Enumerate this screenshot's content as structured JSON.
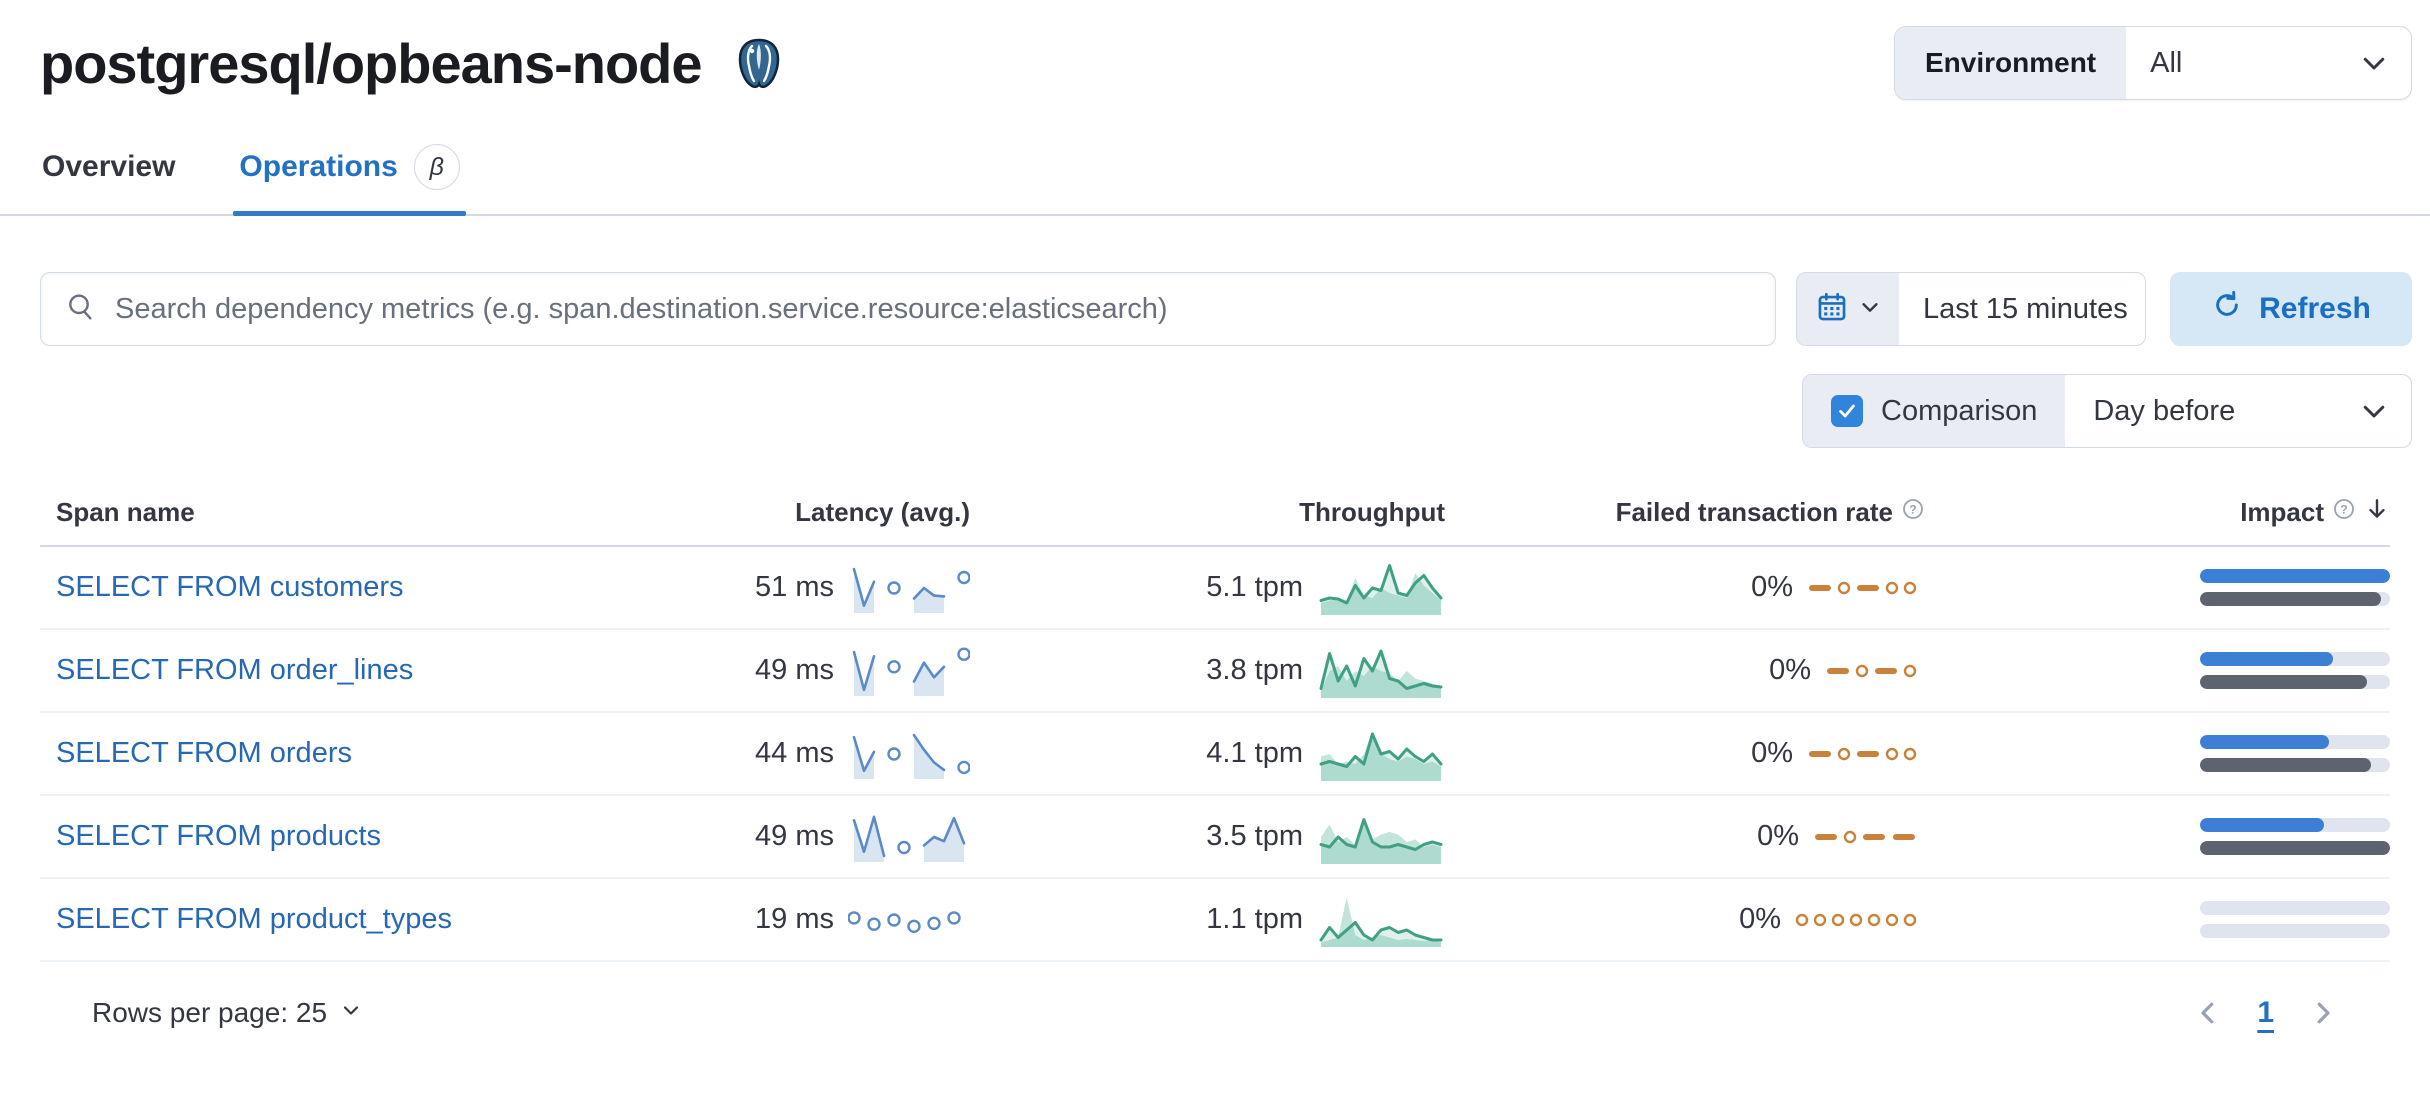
{
  "page": {
    "title": "postgresql/opbeans-node"
  },
  "environment": {
    "label": "Environment",
    "value": "All"
  },
  "tabs": [
    {
      "label": "Overview",
      "active": false
    },
    {
      "label": "Operations",
      "active": true,
      "beta": "β"
    }
  ],
  "search": {
    "placeholder": "Search dependency metrics (e.g. span.destination.service.resource:elasticsearch)"
  },
  "time": {
    "range": "Last 15 minutes",
    "refresh_label": "Refresh"
  },
  "comparison": {
    "label": "Comparison",
    "value": "Day before",
    "checked": true
  },
  "table": {
    "columns": [
      "Span name",
      "Latency (avg.)",
      "Throughput",
      "Failed transaction rate",
      "Impact"
    ],
    "rows": [
      {
        "span_name": "SELECT FROM customers",
        "latency": "51 ms",
        "latency_spark": [
          0.95,
          0.08,
          0.65,
          null,
          0.5,
          null,
          0.25,
          0.5,
          0.32,
          0.3,
          null,
          0.75
        ],
        "throughput": "5.1 tpm",
        "throughput_spark": [
          0.25,
          0.3,
          0.28,
          0.2,
          0.55,
          0.3,
          0.5,
          0.45,
          0.95,
          0.4,
          0.35,
          0.6,
          0.75,
          0.5,
          0.3
        ],
        "throughput_compare": [
          0.2,
          0.25,
          0.3,
          0.25,
          0.7,
          0.35,
          0.3,
          0.5,
          0.4,
          0.35,
          0.3,
          0.8,
          0.55,
          0.4,
          0.25
        ],
        "failed_rate": "0%",
        "failed_spark": [
          "dash",
          "dot",
          "dash",
          "dot",
          "dot"
        ],
        "impact_pct": 100,
        "impact_prev_pct": 95
      },
      {
        "span_name": "SELECT FROM order_lines",
        "latency": "49 ms",
        "latency_spark": [
          0.95,
          0.05,
          0.85,
          null,
          0.6,
          null,
          0.25,
          0.7,
          0.35,
          0.6,
          null,
          0.9
        ],
        "throughput": "3.8 tpm",
        "throughput_spark": [
          0.15,
          0.85,
          0.3,
          0.6,
          0.2,
          0.75,
          0.5,
          0.9,
          0.35,
          0.3,
          0.15,
          0.2,
          0.25,
          0.2,
          0.18
        ],
        "throughput_compare": [
          0.1,
          0.5,
          0.6,
          0.3,
          0.5,
          0.4,
          0.6,
          0.5,
          0.45,
          0.3,
          0.5,
          0.35,
          0.3,
          0.25,
          0.2
        ],
        "failed_rate": "0%",
        "failed_spark": [
          "dash",
          "dot",
          "dash",
          "dot"
        ],
        "impact_pct": 70,
        "impact_prev_pct": 88
      },
      {
        "span_name": "SELECT FROM orders",
        "latency": "44 ms",
        "latency_spark": [
          0.9,
          0.1,
          0.55,
          null,
          0.5,
          null,
          0.95,
          0.6,
          0.3,
          0.12,
          null,
          0.18
        ],
        "throughput": "4.1 tpm",
        "throughput_spark": [
          0.3,
          0.35,
          0.3,
          0.25,
          0.45,
          0.3,
          0.9,
          0.5,
          0.55,
          0.4,
          0.6,
          0.45,
          0.35,
          0.5,
          0.3
        ],
        "throughput_compare": [
          0.45,
          0.5,
          0.3,
          0.35,
          0.3,
          0.5,
          0.95,
          0.5,
          0.4,
          0.35,
          0.45,
          0.4,
          0.3,
          0.35,
          0.25
        ],
        "failed_rate": "0%",
        "failed_spark": [
          "dash",
          "dot",
          "dash",
          "dot",
          "dot"
        ],
        "impact_pct": 68,
        "impact_prev_pct": 90
      },
      {
        "span_name": "SELECT FROM products",
        "latency": "49 ms",
        "latency_spark": [
          0.9,
          0.15,
          0.98,
          0.05,
          null,
          0.25,
          null,
          0.3,
          0.5,
          0.4,
          0.95,
          0.35
        ],
        "throughput": "3.5 tpm",
        "throughput_spark": [
          0.35,
          0.3,
          0.5,
          0.35,
          0.3,
          0.85,
          0.4,
          0.3,
          0.3,
          0.35,
          0.3,
          0.25,
          0.35,
          0.4,
          0.35
        ],
        "throughput_compare": [
          0.5,
          0.75,
          0.4,
          0.5,
          0.35,
          0.9,
          0.45,
          0.55,
          0.6,
          0.55,
          0.4,
          0.45,
          0.3,
          0.35,
          0.3
        ],
        "failed_rate": "0%",
        "failed_spark": [
          "dash",
          "dot",
          "dash",
          "dash"
        ],
        "impact_pct": 65,
        "impact_prev_pct": 100
      },
      {
        "span_name": "SELECT FROM product_types",
        "latency": "19 ms",
        "latency_spark": [
          0.55,
          null,
          0.4,
          null,
          0.5,
          null,
          0.35,
          null,
          0.42,
          null,
          0.55,
          null
        ],
        "throughput": "1.1 tpm",
        "throughput_spark": [
          0.1,
          0.35,
          0.15,
          0.3,
          0.45,
          0.2,
          0.1,
          0.3,
          0.35,
          0.25,
          0.3,
          0.2,
          0.15,
          0.1,
          0.1
        ],
        "throughput_compare": [
          0.05,
          0.1,
          0.15,
          0.95,
          0.2,
          0.1,
          0.15,
          0.2,
          0.15,
          0.1,
          0.12,
          0.1,
          0.08,
          0.1,
          0.05
        ],
        "failed_rate": "0%",
        "failed_spark": [
          "dot",
          "dot",
          "dot",
          "dot",
          "dot",
          "dot",
          "dot"
        ],
        "impact_pct": 0,
        "impact_prev_pct": 0
      }
    ]
  },
  "footer": {
    "rows_per_page": "Rows per page: 25",
    "page_number": "1"
  },
  "colors": {
    "latency_line": "#5b8ac7",
    "latency_area": "rgba(109,152,202,0.25)",
    "throughput_line": "#41a083",
    "throughput_area": "rgba(84,179,153,0.18)",
    "throughput_compare": "rgba(84,179,153,0.35)",
    "failed": "#c8823c",
    "impact_bar": "#3e7fd6",
    "impact_prev_bar": "#5d646f",
    "impact_track": "#dfe4ee",
    "accent_blue": "#2271c3"
  }
}
